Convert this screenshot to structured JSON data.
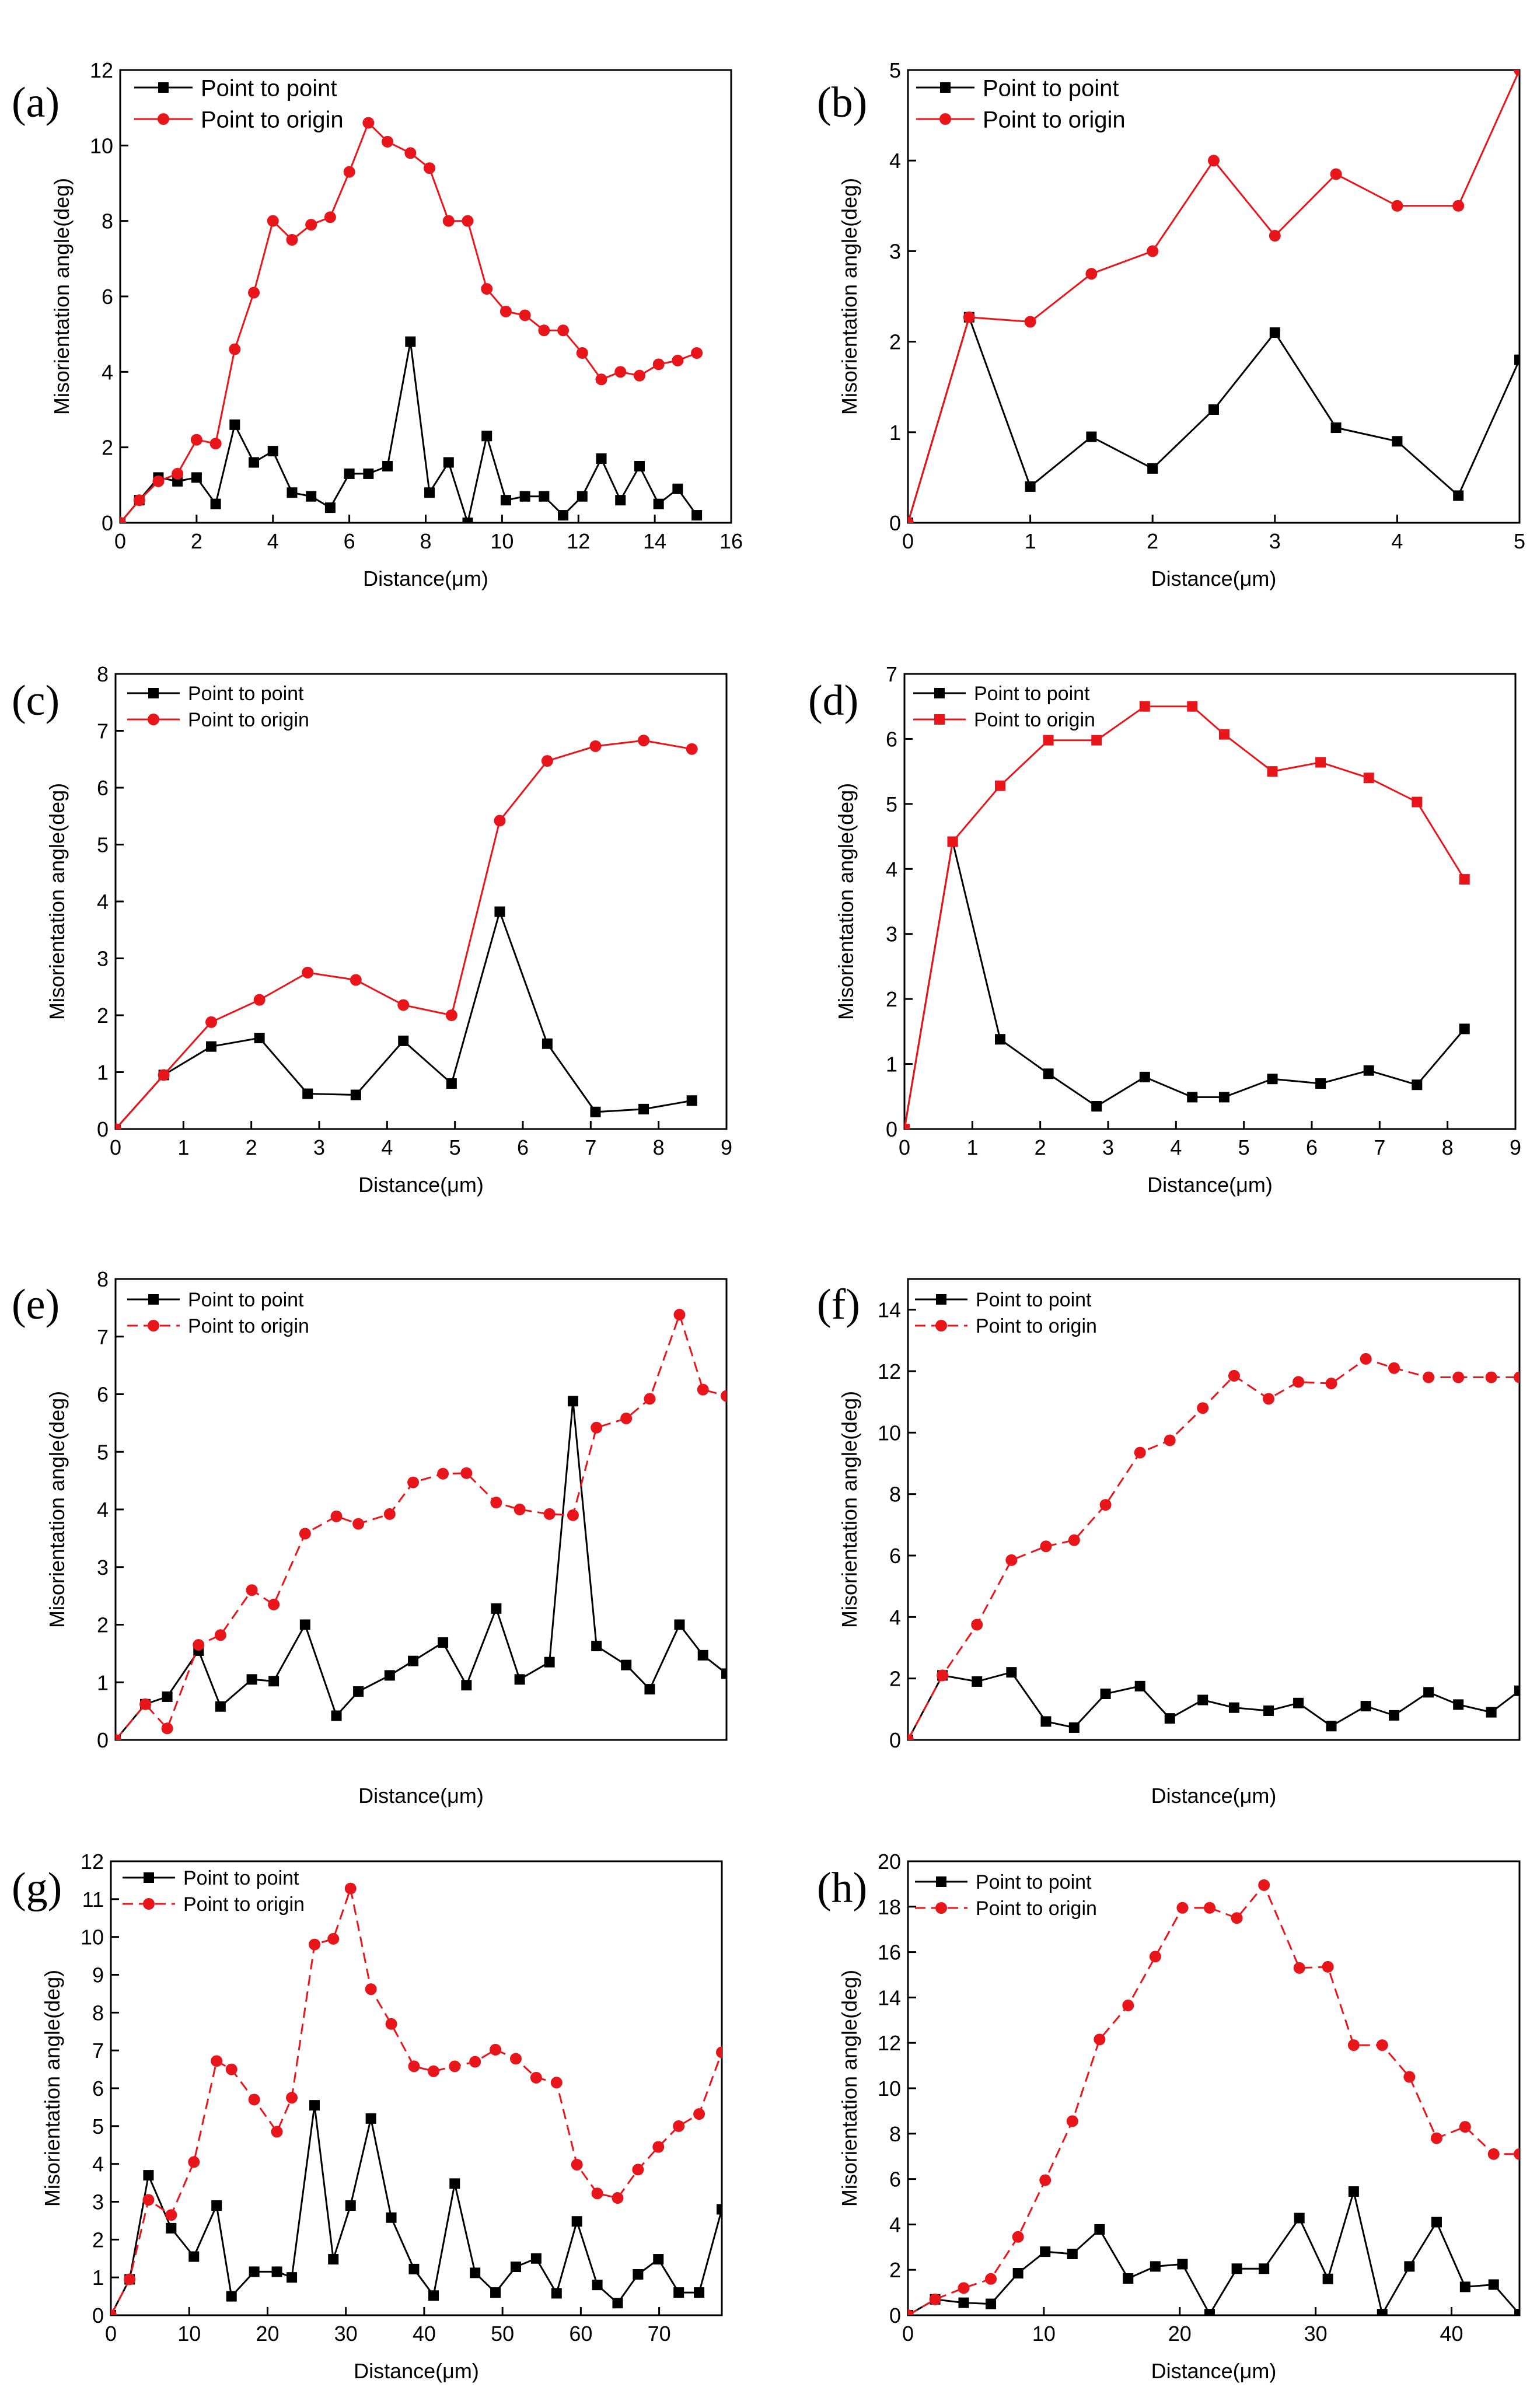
{
  "figure": {
    "panels": 8,
    "colors": {
      "point_to_point": "#000000",
      "point_to_origin": "#e8151b"
    }
  },
  "chart_data": [
    {
      "id": "a",
      "panel_label": "(a)",
      "type": "line",
      "xlabel": "Distance(μm)",
      "ylabel": "Misorientation angle(deg)",
      "xlim": [
        0,
        16
      ],
      "ylim": [
        0,
        12
      ],
      "xticks": [
        0,
        2,
        4,
        6,
        8,
        10,
        12,
        14,
        16
      ],
      "yticks": [
        0,
        2,
        4,
        6,
        8,
        10,
        12
      ],
      "series": [
        {
          "name": "Point to point",
          "color": "#000000",
          "marker": "square",
          "dashed": false,
          "x": [
            0,
            0.5,
            1.0,
            1.5,
            2.0,
            2.5,
            3.0,
            3.5,
            4.0,
            4.5,
            5.0,
            5.5,
            6.0,
            6.5,
            7.0,
            7.6,
            8.1,
            8.6,
            9.1,
            9.6,
            10.1,
            10.6,
            11.1,
            11.6,
            12.1,
            12.6,
            13.1,
            13.6,
            14.1,
            14.6,
            15.1
          ],
          "y": [
            0,
            0.6,
            1.2,
            1.1,
            1.2,
            0.5,
            2.6,
            1.6,
            1.9,
            0.8,
            0.7,
            0.4,
            1.3,
            1.3,
            1.5,
            4.8,
            0.8,
            1.6,
            0,
            2.3,
            0.6,
            0.7,
            0.7,
            0.2,
            0.7,
            1.7,
            0.6,
            1.5,
            0.5,
            0.9,
            0.2
          ]
        },
        {
          "name": "Point to origin",
          "color": "#e8151b",
          "marker": "circle",
          "dashed": false,
          "x": [
            0,
            0.5,
            1.0,
            1.5,
            2.0,
            2.5,
            3.0,
            3.5,
            4.0,
            4.5,
            5.0,
            5.5,
            6.0,
            6.5,
            7.0,
            7.6,
            8.1,
            8.6,
            9.1,
            9.6,
            10.1,
            10.6,
            11.1,
            11.6,
            12.1,
            12.6,
            13.1,
            13.6,
            14.1,
            14.6,
            15.1
          ],
          "y": [
            0,
            0.6,
            1.1,
            1.3,
            2.2,
            2.1,
            4.6,
            6.1,
            8.0,
            7.5,
            7.9,
            8.1,
            9.3,
            10.6,
            10.1,
            9.8,
            9.4,
            8.0,
            8.0,
            6.2,
            5.6,
            5.5,
            5.1,
            5.1,
            4.5,
            3.8,
            4.0,
            3.9,
            4.2,
            4.3,
            4.5
          ]
        }
      ]
    },
    {
      "id": "b",
      "panel_label": "(b)",
      "type": "line",
      "xlabel": "Distance(μm)",
      "ylabel": "Misorientation angle(deg)",
      "xlim": [
        0,
        5
      ],
      "ylim": [
        0,
        5
      ],
      "xticks": [
        0,
        1,
        2,
        3,
        4,
        5
      ],
      "yticks": [
        0,
        1,
        2,
        3,
        4,
        5
      ],
      "series": [
        {
          "name": "Point to point",
          "color": "#000000",
          "marker": "square",
          "dashed": false,
          "x": [
            0,
            0.5,
            1.0,
            1.5,
            2.0,
            2.5,
            3.0,
            3.5,
            4.0,
            4.5,
            5.0
          ],
          "y": [
            0,
            2.27,
            0.4,
            0.95,
            0.6,
            1.25,
            2.1,
            1.05,
            0.9,
            0.3,
            1.8
          ]
        },
        {
          "name": "Point to origin",
          "color": "#e8151b",
          "marker": "circle",
          "dashed": false,
          "x": [
            0,
            0.5,
            1.0,
            1.5,
            2.0,
            2.5,
            3.0,
            3.5,
            4.0,
            4.5,
            5.0
          ],
          "y": [
            0,
            2.27,
            2.22,
            2.75,
            3.0,
            4.0,
            3.17,
            3.85,
            3.5,
            3.5,
            5.0
          ]
        }
      ]
    },
    {
      "id": "c",
      "panel_label": "(c)",
      "type": "line",
      "xlabel": "Distance(μm)",
      "ylabel": "Misorientation angle(deg)",
      "xlim": [
        0,
        9
      ],
      "ylim": [
        0,
        8
      ],
      "xticks": [
        0,
        1,
        2,
        3,
        4,
        5,
        6,
        7,
        8,
        9
      ],
      "yticks": [
        0,
        1,
        2,
        3,
        4,
        5,
        6,
        7,
        8
      ],
      "series": [
        {
          "name": "Point to point",
          "color": "#000000",
          "marker": "square",
          "dashed": false,
          "x": [
            0,
            0.71,
            1.41,
            2.12,
            2.83,
            3.54,
            4.24,
            4.95,
            5.66,
            6.36,
            7.07,
            7.78,
            8.49
          ],
          "y": [
            0,
            0.95,
            1.45,
            1.6,
            0.62,
            0.6,
            1.55,
            0.8,
            3.82,
            1.5,
            0.3,
            0.35,
            0.5
          ]
        },
        {
          "name": "Point to origin",
          "color": "#e8151b",
          "marker": "circle",
          "dashed": false,
          "x": [
            0,
            0.71,
            1.41,
            2.12,
            2.83,
            3.54,
            4.24,
            4.95,
            5.66,
            6.36,
            7.07,
            7.78,
            8.49
          ],
          "y": [
            0,
            0.95,
            1.88,
            2.27,
            2.75,
            2.62,
            2.18,
            2.0,
            5.42,
            6.47,
            6.73,
            6.83,
            6.68
          ]
        }
      ]
    },
    {
      "id": "d",
      "panel_label": "(d)",
      "type": "line",
      "xlabel": "Distance(μm)",
      "ylabel": "Misorientation angle(deg)",
      "xlim": [
        0,
        9
      ],
      "ylim": [
        0,
        7
      ],
      "xticks": [
        0,
        1,
        2,
        3,
        4,
        5,
        6,
        7,
        8,
        9
      ],
      "yticks": [
        0,
        1,
        2,
        3,
        4,
        5,
        6,
        7
      ],
      "series": [
        {
          "name": "Point to point",
          "color": "#000000",
          "marker": "square",
          "dashed": false,
          "x": [
            0,
            0.71,
            1.41,
            2.12,
            2.83,
            3.54,
            4.24,
            4.71,
            5.42,
            6.13,
            6.84,
            7.55,
            8.25
          ],
          "y": [
            0,
            4.42,
            1.38,
            0.85,
            0.35,
            0.8,
            0.49,
            0.49,
            0.77,
            0.7,
            0.9,
            0.68,
            1.54
          ]
        },
        {
          "name": "Point to origin",
          "color": "#e8151b",
          "marker": "square",
          "dashed": false,
          "x": [
            0,
            0.71,
            1.41,
            2.12,
            2.83,
            3.54,
            4.24,
            4.71,
            5.42,
            6.13,
            6.84,
            7.55,
            8.25
          ],
          "y": [
            0,
            4.42,
            5.28,
            5.98,
            5.98,
            6.5,
            6.5,
            6.07,
            5.5,
            5.64,
            5.4,
            5.03,
            3.84
          ]
        }
      ]
    },
    {
      "id": "e",
      "panel_label": "(e)",
      "type": "line",
      "xlabel": "Distance(μm)",
      "ylabel": "Misorientation angle(deg)",
      "xlim": [
        0,
        78
      ],
      "ylim": [
        0,
        8
      ],
      "xticks": [],
      "yticks": [
        0,
        1,
        2,
        3,
        4,
        5,
        6,
        7,
        8
      ],
      "series": [
        {
          "name": "Point to point",
          "color": "#000000",
          "marker": "square",
          "dashed": false,
          "x": [
            0,
            3.8,
            6.6,
            10.6,
            13.4,
            17.4,
            20.2,
            24.2,
            28.2,
            31.0,
            35.0,
            38.0,
            41.8,
            44.8,
            48.6,
            51.6,
            55.4,
            58.4,
            61.4,
            65.2,
            68.2,
            72.0,
            75.0,
            78.0
          ],
          "y": [
            0,
            0.62,
            0.75,
            1.55,
            0.58,
            1.05,
            1.02,
            2.0,
            0.42,
            0.84,
            1.12,
            1.37,
            1.69,
            0.95,
            2.28,
            1.05,
            1.35,
            5.88,
            1.63,
            1.3,
            0.88,
            2.0,
            1.47,
            1.15
          ]
        },
        {
          "name": "Point to origin",
          "color": "#e8151b",
          "marker": "circle",
          "dashed": true,
          "x": [
            0,
            3.8,
            6.6,
            10.6,
            13.4,
            17.4,
            20.2,
            24.2,
            28.2,
            31.0,
            35.0,
            38.0,
            41.8,
            44.8,
            48.6,
            51.6,
            55.4,
            58.4,
            61.4,
            65.2,
            68.2,
            72.0,
            75.0,
            78.0
          ],
          "y": [
            0,
            0.62,
            0.2,
            1.65,
            1.82,
            2.6,
            2.35,
            3.58,
            3.88,
            3.75,
            3.92,
            4.47,
            4.62,
            4.63,
            4.12,
            4.0,
            3.92,
            3.9,
            5.42,
            5.58,
            5.92,
            7.38,
            6.08,
            5.97
          ]
        }
      ]
    },
    {
      "id": "f",
      "panel_label": "(f)",
      "type": "line",
      "xlabel": "Distance(μm)",
      "ylabel": "Misorientation angle(deg)",
      "xlim": [
        0,
        39
      ],
      "ylim": [
        0,
        15
      ],
      "xticks": [],
      "yticks": [
        0,
        2,
        4,
        6,
        8,
        10,
        12,
        14
      ],
      "series": [
        {
          "name": "Point to point",
          "color": "#000000",
          "marker": "square",
          "dashed": false,
          "x": [
            0,
            2.2,
            4.4,
            6.6,
            8.8,
            10.6,
            12.6,
            14.8,
            16.7,
            18.8,
            20.8,
            23.0,
            24.9,
            27.0,
            29.2,
            31.0,
            33.2,
            35.1,
            37.2,
            39.0
          ],
          "y": [
            0,
            2.1,
            1.9,
            2.2,
            0.6,
            0.4,
            1.5,
            1.75,
            0.7,
            1.3,
            1.05,
            0.95,
            1.2,
            0.45,
            1.1,
            0.8,
            1.55,
            1.15,
            0.9,
            1.6
          ]
        },
        {
          "name": "Point to origin",
          "color": "#e8151b",
          "marker": "circle",
          "dashed": true,
          "x": [
            0,
            2.2,
            4.4,
            6.6,
            8.8,
            10.6,
            12.6,
            14.8,
            16.7,
            18.8,
            20.8,
            23.0,
            24.9,
            27.0,
            29.2,
            31.0,
            33.2,
            35.1,
            37.2,
            39.0
          ],
          "y": [
            0,
            2.1,
            3.75,
            5.85,
            6.3,
            6.5,
            7.65,
            9.35,
            9.75,
            10.8,
            11.85,
            11.1,
            11.65,
            11.6,
            12.4,
            12.1,
            11.8,
            11.8,
            11.8,
            11.8
          ]
        }
      ]
    },
    {
      "id": "g",
      "panel_label": "(g)",
      "type": "line",
      "xlabel": "Distance(μm)",
      "ylabel": "Misorientation angle(deg)",
      "xlim": [
        0,
        78
      ],
      "ylim": [
        0,
        12
      ],
      "xticks": [
        0,
        10,
        20,
        30,
        40,
        50,
        60,
        70
      ],
      "yticks": [
        0,
        1,
        2,
        3,
        4,
        5,
        6,
        7,
        8,
        9,
        10,
        11,
        12
      ],
      "series": [
        {
          "name": "Point to point",
          "color": "#000000",
          "marker": "square",
          "dashed": false,
          "x": [
            0,
            2.4,
            4.8,
            7.7,
            10.6,
            13.5,
            15.4,
            18.3,
            21.2,
            23.1,
            26.0,
            28.4,
            30.6,
            33.2,
            35.8,
            38.7,
            41.2,
            43.9,
            46.5,
            49.1,
            51.7,
            54.3,
            56.9,
            59.5,
            62.1,
            64.7,
            67.3,
            69.9,
            72.5,
            75.1,
            78.0
          ],
          "y": [
            0,
            0.95,
            3.7,
            2.3,
            1.55,
            2.9,
            0.5,
            1.15,
            1.15,
            1.0,
            5.55,
            1.48,
            2.9,
            5.2,
            2.58,
            1.22,
            0.52,
            3.48,
            1.12,
            0.6,
            1.28,
            1.5,
            0.58,
            2.48,
            0.8,
            0.32,
            1.08,
            1.48,
            0.6,
            0.6,
            2.8
          ]
        },
        {
          "name": "Point to origin",
          "color": "#e8151b",
          "marker": "circle",
          "dashed": true,
          "x": [
            0,
            2.4,
            4.8,
            7.7,
            10.6,
            13.5,
            15.4,
            18.3,
            21.2,
            23.1,
            26.0,
            28.4,
            30.6,
            33.2,
            35.8,
            38.7,
            41.2,
            43.9,
            46.5,
            49.1,
            51.7,
            54.3,
            56.9,
            59.5,
            62.1,
            64.7,
            67.3,
            69.9,
            72.5,
            75.1,
            78.0
          ],
          "y": [
            0,
            0.95,
            3.05,
            2.65,
            4.05,
            6.72,
            6.5,
            5.7,
            4.85,
            5.75,
            9.8,
            9.95,
            11.28,
            8.62,
            7.7,
            6.58,
            6.45,
            6.58,
            6.7,
            7.02,
            6.78,
            6.28,
            6.15,
            3.98,
            3.22,
            3.1,
            3.85,
            4.45,
            5.0,
            5.32,
            6.95
          ]
        }
      ]
    },
    {
      "id": "h",
      "panel_label": "(h)",
      "type": "line",
      "xlabel": "Distance(μm)",
      "ylabel": "Misorientation angle(deg)",
      "xlim": [
        0,
        45
      ],
      "ylim": [
        0,
        20
      ],
      "xticks": [
        0,
        10,
        20,
        30,
        40
      ],
      "yticks": [
        0,
        2,
        4,
        6,
        8,
        10,
        12,
        14,
        16,
        18,
        20
      ],
      "series": [
        {
          "name": "Point to point",
          "color": "#000000",
          "marker": "square",
          "dashed": false,
          "x": [
            0,
            2.0,
            4.1,
            6.1,
            8.1,
            10.1,
            12.1,
            14.1,
            16.2,
            18.2,
            20.2,
            22.2,
            24.2,
            26.2,
            28.8,
            30.9,
            32.8,
            34.9,
            36.9,
            38.9,
            41.0,
            43.1,
            45.0
          ],
          "y": [
            0,
            0.7,
            0.55,
            0.5,
            1.85,
            2.8,
            2.7,
            3.78,
            1.62,
            2.15,
            2.25,
            0.05,
            2.05,
            2.05,
            4.28,
            1.6,
            5.45,
            0.05,
            2.15,
            4.1,
            1.25,
            1.35,
            0.05
          ]
        },
        {
          "name": "Point to origin",
          "color": "#e8151b",
          "marker": "circle",
          "dashed": true,
          "x": [
            0,
            2.0,
            4.1,
            6.1,
            8.1,
            10.1,
            12.1,
            14.1,
            16.2,
            18.2,
            20.2,
            22.2,
            24.2,
            26.2,
            28.8,
            30.9,
            32.8,
            34.9,
            36.9,
            38.9,
            41.0,
            43.1,
            45.0
          ],
          "y": [
            0,
            0.7,
            1.2,
            1.6,
            3.45,
            5.95,
            8.55,
            12.15,
            13.65,
            15.8,
            17.95,
            17.95,
            17.5,
            18.95,
            15.3,
            15.35,
            11.9,
            11.9,
            10.5,
            7.8,
            8.3,
            7.1,
            7.1
          ]
        }
      ]
    }
  ]
}
